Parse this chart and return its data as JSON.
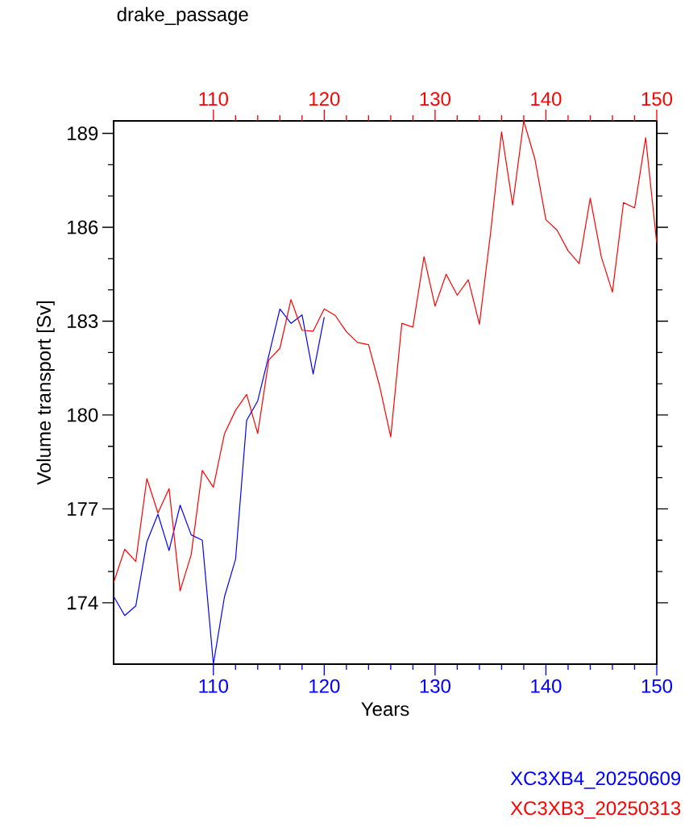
{
  "chart_data": {
    "type": "line",
    "title": "drake_passage",
    "xlabel": "Years",
    "ylabel": "Volume transport [Sv]",
    "xlim": [
      101,
      150
    ],
    "xticks": [
      110,
      120,
      130,
      140,
      150
    ],
    "x2lim": [
      101,
      150
    ],
    "x2ticks": [
      110,
      120,
      130,
      140,
      150
    ],
    "ylim": [
      172.04,
      189.4
    ],
    "yticks": [
      174,
      177,
      180,
      183,
      186,
      189
    ],
    "legend": "bottom right",
    "series": [
      {
        "name": "XC3XB4_20250609",
        "color": "#0000ff",
        "x": [
          101,
          102,
          103,
          104,
          105,
          106,
          107,
          108,
          109,
          110,
          111,
          112,
          113,
          114,
          115,
          116,
          117,
          118,
          119,
          120
        ],
        "values": [
          174.21,
          173.59,
          173.9,
          175.95,
          176.83,
          175.67,
          177.12,
          176.17,
          176.0,
          172.04,
          174.19,
          175.39,
          179.83,
          180.45,
          181.9,
          183.39,
          182.93,
          183.2,
          181.31,
          183.13
        ]
      },
      {
        "name": "XC3XB3_20250313",
        "color": "#ff0000",
        "axis": "x2",
        "x": [
          101,
          102,
          103,
          104,
          105,
          106,
          107,
          108,
          109,
          110,
          111,
          112,
          113,
          114,
          115,
          116,
          117,
          118,
          119,
          120,
          121,
          122,
          123,
          124,
          125,
          126,
          127,
          128,
          129,
          130,
          131,
          132,
          133,
          134,
          135,
          136,
          137,
          138,
          139,
          140,
          141,
          142,
          143,
          144,
          145,
          146,
          147,
          148,
          149,
          150
        ],
        "values": [
          174.64,
          175.71,
          175.32,
          177.97,
          176.87,
          177.65,
          174.38,
          175.54,
          178.23,
          177.69,
          179.4,
          180.15,
          180.66,
          179.41,
          181.76,
          182.13,
          183.69,
          182.71,
          182.68,
          183.39,
          183.18,
          182.66,
          182.32,
          182.25,
          180.92,
          179.3,
          182.93,
          182.81,
          185.06,
          183.48,
          184.5,
          183.83,
          184.32,
          182.9,
          185.8,
          189.05,
          186.71,
          189.4,
          188.19,
          186.24,
          185.91,
          185.25,
          184.84,
          186.93,
          185.05,
          183.93,
          186.79,
          186.62,
          188.86,
          185.48
        ]
      }
    ]
  }
}
